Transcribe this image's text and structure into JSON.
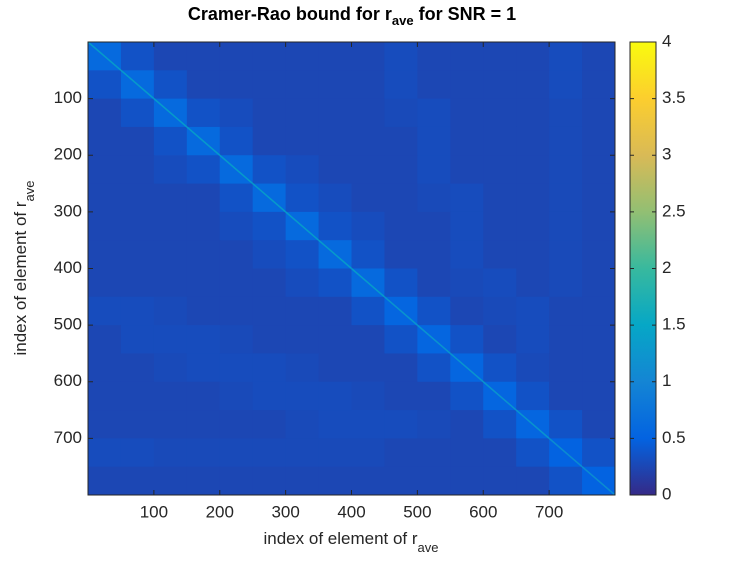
{
  "chart_data": {
    "type": "heatmap",
    "title": {
      "text": "Cramer-Rao bound for r",
      "subscript": "ave",
      "suffix": " for SNR = 1"
    },
    "xlabel": {
      "text": "index of element of r",
      "subscript": "ave"
    },
    "ylabel": {
      "text": "index of element of r",
      "subscript": "ave"
    },
    "xlim": [
      0,
      800
    ],
    "ylim": [
      0,
      800
    ],
    "y_reversed": true,
    "xticks": [
      100,
      200,
      300,
      400,
      500,
      600,
      700
    ],
    "yticks": [
      100,
      200,
      300,
      400,
      500,
      600,
      700
    ],
    "values": [
      [
        0.6,
        0.35,
        0.25,
        0.25,
        0.25,
        0.25,
        0.25,
        0.25,
        0.25,
        0.3,
        0.25,
        0.25,
        0.25,
        0.25,
        0.3,
        0.25
      ],
      [
        0.35,
        0.6,
        0.35,
        0.25,
        0.25,
        0.25,
        0.25,
        0.25,
        0.25,
        0.3,
        0.25,
        0.25,
        0.25,
        0.25,
        0.3,
        0.25
      ],
      [
        0.25,
        0.35,
        0.6,
        0.35,
        0.3,
        0.25,
        0.25,
        0.25,
        0.25,
        0.28,
        0.3,
        0.25,
        0.25,
        0.25,
        0.28,
        0.25
      ],
      [
        0.25,
        0.25,
        0.35,
        0.6,
        0.35,
        0.25,
        0.25,
        0.25,
        0.25,
        0.25,
        0.3,
        0.25,
        0.25,
        0.25,
        0.28,
        0.25
      ],
      [
        0.25,
        0.25,
        0.3,
        0.35,
        0.6,
        0.35,
        0.3,
        0.25,
        0.25,
        0.25,
        0.3,
        0.25,
        0.25,
        0.25,
        0.28,
        0.25
      ],
      [
        0.25,
        0.25,
        0.25,
        0.25,
        0.35,
        0.6,
        0.35,
        0.3,
        0.25,
        0.25,
        0.28,
        0.3,
        0.25,
        0.25,
        0.28,
        0.25
      ],
      [
        0.25,
        0.25,
        0.25,
        0.25,
        0.3,
        0.35,
        0.6,
        0.35,
        0.3,
        0.25,
        0.25,
        0.3,
        0.25,
        0.25,
        0.28,
        0.25
      ],
      [
        0.25,
        0.25,
        0.25,
        0.25,
        0.25,
        0.3,
        0.35,
        0.6,
        0.35,
        0.25,
        0.25,
        0.3,
        0.25,
        0.25,
        0.28,
        0.25
      ],
      [
        0.25,
        0.25,
        0.25,
        0.25,
        0.25,
        0.25,
        0.3,
        0.35,
        0.6,
        0.35,
        0.25,
        0.28,
        0.3,
        0.25,
        0.28,
        0.25
      ],
      [
        0.3,
        0.3,
        0.28,
        0.25,
        0.25,
        0.25,
        0.25,
        0.25,
        0.35,
        0.55,
        0.35,
        0.25,
        0.28,
        0.3,
        0.25,
        0.25
      ],
      [
        0.25,
        0.3,
        0.3,
        0.3,
        0.28,
        0.25,
        0.25,
        0.25,
        0.25,
        0.35,
        0.55,
        0.35,
        0.25,
        0.3,
        0.25,
        0.25
      ],
      [
        0.25,
        0.25,
        0.28,
        0.3,
        0.3,
        0.3,
        0.28,
        0.25,
        0.25,
        0.25,
        0.35,
        0.55,
        0.35,
        0.28,
        0.25,
        0.25
      ],
      [
        0.25,
        0.25,
        0.25,
        0.25,
        0.28,
        0.3,
        0.3,
        0.3,
        0.28,
        0.25,
        0.25,
        0.35,
        0.55,
        0.35,
        0.25,
        0.25
      ],
      [
        0.25,
        0.25,
        0.25,
        0.25,
        0.25,
        0.25,
        0.28,
        0.3,
        0.3,
        0.3,
        0.28,
        0.25,
        0.35,
        0.55,
        0.35,
        0.25
      ],
      [
        0.3,
        0.3,
        0.28,
        0.28,
        0.28,
        0.28,
        0.28,
        0.28,
        0.28,
        0.25,
        0.25,
        0.25,
        0.25,
        0.35,
        0.5,
        0.35
      ],
      [
        0.25,
        0.25,
        0.25,
        0.25,
        0.25,
        0.25,
        0.25,
        0.25,
        0.25,
        0.25,
        0.25,
        0.25,
        0.25,
        0.25,
        0.35,
        0.5
      ]
    ],
    "colorbar": {
      "lim": [
        0,
        4
      ],
      "ticks": [
        0,
        0.5,
        1,
        1.5,
        2,
        2.5,
        3,
        3.5,
        4
      ],
      "colormap": [
        "#352a87",
        "#0363e1",
        "#1485d4",
        "#06a7c6",
        "#38b99e",
        "#92bf73",
        "#d9ba56",
        "#fcce2e",
        "#f9fb0e"
      ]
    }
  }
}
